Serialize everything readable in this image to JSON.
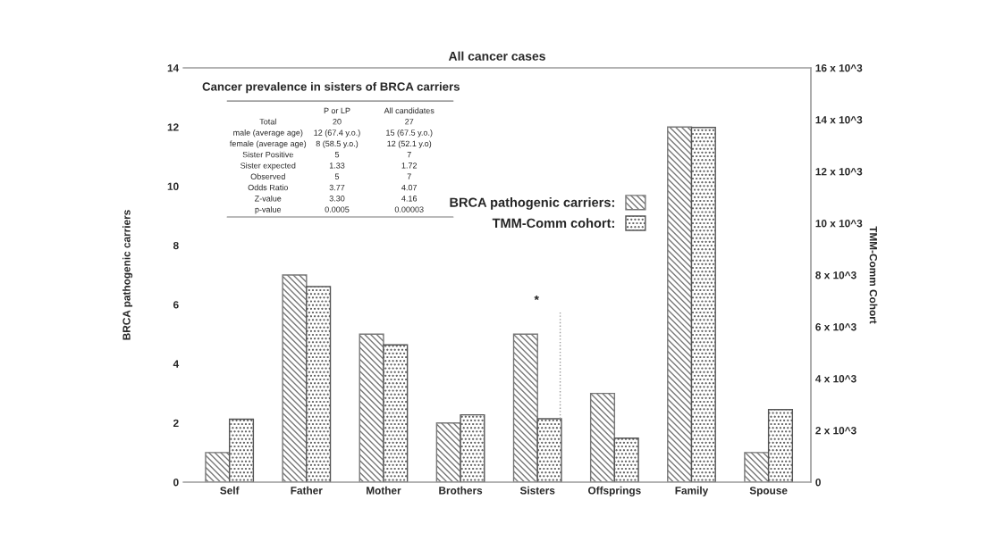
{
  "chart_data": {
    "type": "bar",
    "title": "All cancer cases",
    "categories": [
      "Self",
      "Father",
      "Mother",
      "Brothers",
      "Sisters",
      "Offsprings",
      "Family",
      "Spouse"
    ],
    "series": [
      {
        "name": "BRCA pathogenic carriers:",
        "color": "#777777",
        "values": [
          1,
          7,
          5,
          2,
          5,
          3,
          12,
          1
        ]
      },
      {
        "name": "TMM-Comm cohort:",
        "color": "#555555",
        "axis": "y2",
        "values": [
          2430,
          7550,
          5300,
          2600,
          2450,
          1700,
          13700,
          2800
        ],
        "errors": [
          null,
          null,
          null,
          null,
          [
            2450,
            6550
          ],
          null,
          null,
          null
        ]
      }
    ],
    "ylabel": "BRCA pathogenic carriers",
    "y2label": "TMM-Comm Cohort",
    "ylim": [
      0,
      14
    ],
    "yticks": [
      0,
      2,
      4,
      6,
      8,
      10,
      12,
      14
    ],
    "y2lim": [
      0,
      16000
    ],
    "y2ticks": [
      0,
      {
        "value": 2000,
        "label": "2 x 10^3"
      },
      {
        "value": 4000,
        "label": "4 x 10^3"
      },
      {
        "value": 6000,
        "label": "6 x 10^3"
      },
      {
        "value": 8000,
        "label": "8 x 10^3"
      },
      {
        "value": 10000,
        "label": "10 x 10^3"
      },
      {
        "value": 12000,
        "label": "12 x 10^3"
      },
      {
        "value": 14000,
        "label": "14 x 10^3"
      },
      {
        "value": 16000,
        "label": "16 x 10^3"
      }
    ],
    "legend": "center",
    "grid": false,
    "annotations": [
      "Cancer prevalence in sisters of BRCA carriers",
      "P or LP",
      "All candidates",
      "Total",
      "20",
      "27",
      "male (average age)",
      "12 (67.4 y.o.)",
      "15 (67.5 y.o.)",
      "female (average age)",
      "8 (58.5 y.o.)",
      "12 (52.1 y.o)",
      "Sister Positive",
      "5",
      "7",
      "Sister expected",
      "1.33",
      "1.72",
      "Observed",
      "5",
      "7",
      "Odds Ratio",
      "3.77",
      "4.07",
      "Z-value",
      "3.30",
      "4.16",
      "p-value",
      "0.0005",
      "0.00003",
      "*"
    ]
  }
}
